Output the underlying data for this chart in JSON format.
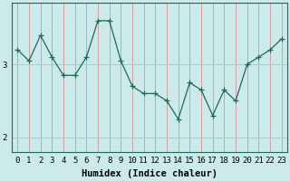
{
  "x": [
    0,
    1,
    2,
    3,
    4,
    5,
    6,
    7,
    8,
    9,
    10,
    11,
    12,
    13,
    14,
    15,
    16,
    17,
    18,
    19,
    20,
    21,
    22,
    23
  ],
  "y": [
    3.2,
    3.05,
    3.4,
    3.1,
    2.85,
    2.85,
    3.1,
    3.6,
    3.6,
    3.05,
    2.7,
    2.6,
    2.6,
    2.5,
    2.25,
    2.75,
    2.65,
    2.3,
    2.65,
    2.5,
    3.0,
    3.1,
    3.2,
    3.35
  ],
  "line_color": "#1a6b5a",
  "marker": "+",
  "bg_color": "#cceaea",
  "grid_color": "#aacece",
  "xlabel": "Humidex (Indice chaleur)",
  "ylabel": "",
  "yticks": [
    2,
    3
  ],
  "ylim": [
    1.8,
    3.85
  ],
  "xlim": [
    -0.5,
    23.5
  ],
  "xtick_labels": [
    "0",
    "1",
    "2",
    "3",
    "4",
    "5",
    "6",
    "7",
    "8",
    "9",
    "10",
    "11",
    "12",
    "13",
    "14",
    "15",
    "16",
    "17",
    "18",
    "19",
    "20",
    "21",
    "22",
    "23"
  ],
  "axis_fontsize": 7.5,
  "tick_fontsize": 6.5,
  "xlabel_fontsize": 7.5
}
